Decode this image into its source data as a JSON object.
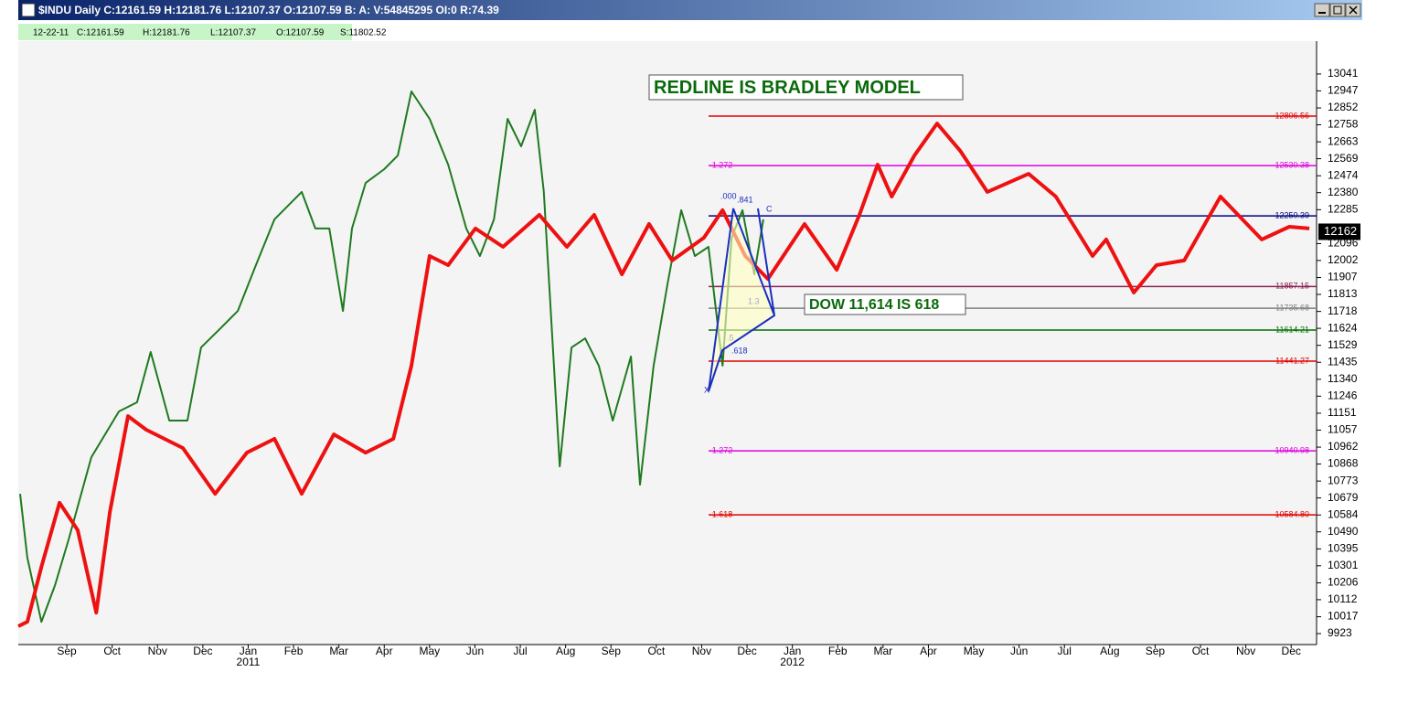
{
  "window_title": "$INDU Daily C:12161.59 H:12181.76 L:12107.37 O:12107.59 B: A: V:54845295 OI:0 R:74.39",
  "info_bar": [
    "12-22-11",
    "C:12161.59",
    "H:12181.76",
    "L:12107.37",
    "O:12107.59",
    "S:11802.52"
  ],
  "chart_data": {
    "type": "line",
    "xlim": [
      -1.07,
      27.56
    ],
    "ylim": [
      9862,
      13224
    ],
    "xticks": [
      {
        "value": 0,
        "label": "Sep"
      },
      {
        "value": 1,
        "label": "Oct"
      },
      {
        "value": 2,
        "label": "Nov"
      },
      {
        "value": 3,
        "label": "Dec"
      },
      {
        "value": 4,
        "label": "Jan"
      },
      {
        "value": 5,
        "label": "Feb"
      },
      {
        "value": 6,
        "label": "Mar"
      },
      {
        "value": 7,
        "label": "Apr"
      },
      {
        "value": 8,
        "label": "May"
      },
      {
        "value": 9,
        "label": "Jun"
      },
      {
        "value": 10,
        "label": "Jul"
      },
      {
        "value": 11,
        "label": "Aug"
      },
      {
        "value": 12,
        "label": "Sep"
      },
      {
        "value": 13,
        "label": "Oct"
      },
      {
        "value": 14,
        "label": "Nov"
      },
      {
        "value": 15,
        "label": "Dec"
      },
      {
        "value": 16,
        "label": "Jan"
      },
      {
        "value": 17,
        "label": "Feb"
      },
      {
        "value": 18,
        "label": "Mar"
      },
      {
        "value": 19,
        "label": "Apr"
      },
      {
        "value": 20,
        "label": "May"
      },
      {
        "value": 21,
        "label": "Jun"
      },
      {
        "value": 22,
        "label": "Jul"
      },
      {
        "value": 23,
        "label": "Aug"
      },
      {
        "value": 24,
        "label": "Sep"
      },
      {
        "value": 25,
        "label": "Oct"
      },
      {
        "value": 26,
        "label": "Nov"
      },
      {
        "value": 27,
        "label": "Dec"
      }
    ],
    "year_labels": [
      {
        "value": 4,
        "label": "2011"
      },
      {
        "value": 16,
        "label": "2012"
      }
    ],
    "yticks": [
      9923,
      10017,
      10112,
      10206,
      10301,
      10395,
      10490,
      10584,
      10679,
      10773,
      10868,
      10962,
      11057,
      11151,
      11246,
      11340,
      11435,
      11529,
      11624,
      11718,
      11813,
      11907,
      12002,
      12096,
      12285,
      12380,
      12474,
      12569,
      12663,
      12758,
      12852,
      12947,
      13041
    ],
    "last_price": 12162,
    "series": [
      {
        "color": "#1f7a1f",
        "x": [
          -1.03,
          -0.87,
          -0.56,
          -0.26,
          0.04,
          0.54,
          1.15,
          1.55,
          1.85,
          2.26,
          2.66,
          2.96,
          3.37,
          3.77,
          4.17,
          4.58,
          5.18,
          5.48,
          5.79,
          6.09,
          6.29,
          6.59,
          7.0,
          7.3,
          7.6,
          8.0,
          8.41,
          8.81,
          9.11,
          9.42,
          9.72,
          10.02,
          10.32,
          10.52,
          10.73,
          10.87,
          11.13,
          11.43,
          11.73,
          12.04,
          12.44,
          12.64,
          12.94,
          13.25,
          13.55,
          13.85,
          14.15,
          14.46,
          14.66,
          14.9,
          15.16,
          15.36
        ],
        "values": [
          10702,
          10346,
          9989,
          10193,
          10448,
          10906,
          11161,
          11212,
          11492,
          11110,
          11110,
          11517,
          11619,
          11721,
          11976,
          12231,
          12384,
          12180,
          12180,
          11721,
          12180,
          12434,
          12511,
          12587,
          12944,
          12791,
          12536,
          12180,
          12027,
          12231,
          12791,
          12638,
          12842,
          12384,
          11467,
          10855,
          11517,
          11568,
          11416,
          11110,
          11467,
          10753,
          11416,
          11874,
          12282,
          12027,
          12078,
          11416,
          12129,
          12282,
          11925,
          12231
        ]
      },
      {
        "color": "#ee1111",
        "x": [
          -1.07,
          -0.87,
          -0.56,
          -0.16,
          0.24,
          0.65,
          0.95,
          1.35,
          1.75,
          2.56,
          3.27,
          3.97,
          4.58,
          5.18,
          5.89,
          6.59,
          7.2,
          7.6,
          8.0,
          8.41,
          9.01,
          9.62,
          10.42,
          11.03,
          11.63,
          12.24,
          12.84,
          13.35,
          14.05,
          14.46,
          14.96,
          15.46,
          16.27,
          16.98,
          17.48,
          17.88,
          18.19,
          18.69,
          19.19,
          19.7,
          20.3,
          21.21,
          21.81,
          22.62,
          22.92,
          23.53,
          24.03,
          24.64,
          25.44,
          26.35,
          26.96,
          27.4
        ],
        "values": [
          9964,
          9989,
          10295,
          10652,
          10499,
          10040,
          10601,
          11135,
          11059,
          10957,
          10702,
          10931,
          11008,
          10702,
          11033,
          10931,
          11008,
          11416,
          12027,
          11976,
          12180,
          12078,
          12256,
          12078,
          12256,
          11925,
          12205,
          12002,
          12129,
          12282,
          12027,
          11899,
          12205,
          11950,
          12256,
          12536,
          12358,
          12587,
          12765,
          12613,
          12384,
          12485,
          12358,
          12027,
          12119,
          11823,
          11976,
          12002,
          12358,
          12119,
          12190,
          12180
        ]
      }
    ],
    "levels": [
      {
        "value": 12806.56,
        "label": "12806.56",
        "color": "#e00000"
      },
      {
        "value": 12530.38,
        "label": "12530.38",
        "ratio": "1.272",
        "color": "#e000e0"
      },
      {
        "value": 12250.39,
        "label": "12250.39",
        "color": "#000080"
      },
      {
        "value": 11857.15,
        "label": "11857.15",
        "color": "#8b2252"
      },
      {
        "value": 11735.68,
        "label": "11735.68",
        "color": "#808080"
      },
      {
        "value": 11614.21,
        "label": "11614.21",
        "color": "#007000"
      },
      {
        "value": 11441.27,
        "label": "11441.27",
        "color": "#e00000"
      },
      {
        "value": 10940.98,
        "label": "10940.98",
        "ratio": "1.272",
        "color": "#e000e0"
      },
      {
        "value": 10584.8,
        "label": "10584.80",
        "ratio": "1.618",
        "color": "#e00000"
      }
    ],
    "annotations": [
      "REDLINE IS BRADLEY MODEL",
      "DOW 11,614  IS 618"
    ],
    "pattern_labels": [
      ".000",
      ".841",
      "C",
      "1.3",
      ".5",
      ".618",
      "X"
    ]
  }
}
